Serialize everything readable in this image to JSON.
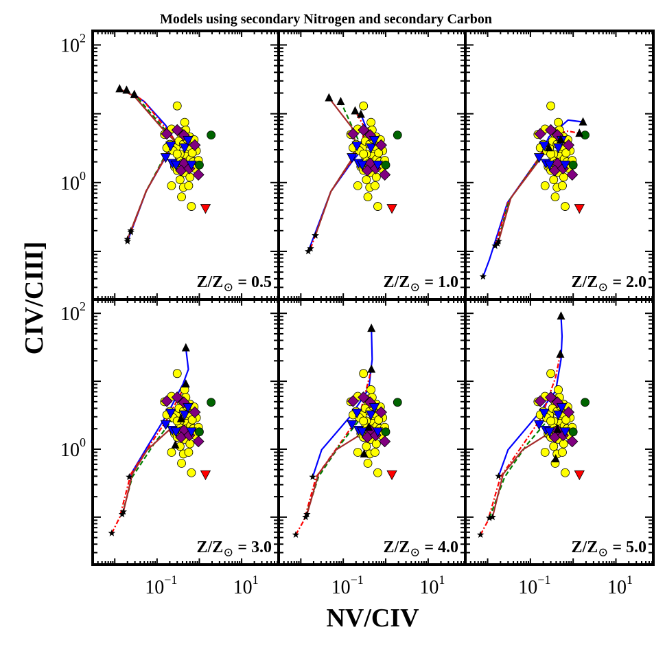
{
  "chart_data": {
    "type": "scatter",
    "title": "Models using secondary Nitrogen and secondary Carbon",
    "xlabel": "NV/CIV",
    "ylabel": "CIV/CIII]",
    "xscale": "log",
    "yscale": "log",
    "xlim": [
      0.003,
      75
    ],
    "ylim": [
      0.02,
      160
    ],
    "x_tick_labels": [
      {
        "value": 0.1,
        "base": "10",
        "exp": "−1"
      },
      {
        "value": 10,
        "base": "10",
        "exp": "1"
      }
    ],
    "y_tick_labels": [
      {
        "value": 100,
        "base": "10",
        "exp": "2"
      },
      {
        "value": 1,
        "base": "10",
        "exp": "0"
      }
    ],
    "grid": false,
    "layout": "2 rows x 3 columns, shared axes",
    "panel_label_prefix": "Z/Z",
    "panel_label_sun": "⊙",
    "observations": {
      "yellow_circles": {
        "color": "#ffff00",
        "marker": "circle",
        "points": [
          [
            0.3,
            13
          ],
          [
            0.45,
            7.5
          ],
          [
            0.4,
            5.5
          ],
          [
            0.48,
            5.8
          ],
          [
            0.6,
            4.6
          ],
          [
            0.7,
            3.6
          ],
          [
            0.75,
            4.2
          ],
          [
            0.85,
            2.9
          ],
          [
            0.55,
            3.0
          ],
          [
            0.5,
            2.4
          ],
          [
            0.35,
            2.6
          ],
          [
            0.28,
            3.2
          ],
          [
            0.2,
            3.6
          ],
          [
            0.17,
            3.2
          ],
          [
            0.24,
            2.9
          ],
          [
            0.33,
            2.1
          ],
          [
            0.4,
            1.9
          ],
          [
            0.52,
            2.0
          ],
          [
            0.62,
            2.2
          ],
          [
            0.72,
            2.0
          ],
          [
            0.8,
            1.6
          ],
          [
            0.26,
            1.7
          ],
          [
            0.3,
            1.5
          ],
          [
            0.45,
            1.4
          ],
          [
            0.6,
            1.2
          ],
          [
            0.35,
            1.1
          ],
          [
            0.22,
            0.9
          ],
          [
            0.42,
            0.85
          ],
          [
            0.56,
            0.9
          ],
          [
            0.38,
            0.62
          ],
          [
            0.65,
            0.45
          ],
          [
            0.15,
            5.0
          ],
          [
            0.22,
            6.0
          ],
          [
            0.33,
            4.0
          ],
          [
            0.42,
            3.6
          ],
          [
            0.58,
            3.3
          ],
          [
            0.68,
            2.7
          ],
          [
            0.95,
            2.1
          ],
          [
            0.3,
            2.6
          ],
          [
            0.36,
            5.2
          ],
          [
            0.5,
            4.3
          ]
        ]
      },
      "purple_diamonds": {
        "color": "#800080",
        "marker": "diamond",
        "points": [
          [
            0.3,
            5.8
          ],
          [
            0.43,
            4.9
          ],
          [
            0.78,
            3.5
          ],
          [
            0.43,
            1.9
          ],
          [
            0.37,
            1.5
          ],
          [
            0.58,
            1.6
          ],
          [
            0.95,
            1.3
          ],
          [
            0.17,
            5.1
          ]
        ]
      },
      "blue_down_triangles": {
        "color": "#0000ff",
        "marker": "triangle-down",
        "points": [
          [
            0.21,
            3.4
          ],
          [
            0.45,
            3.2
          ],
          [
            0.54,
            4.1
          ],
          [
            0.16,
            2.3
          ],
          [
            0.23,
            1.9
          ],
          [
            0.28,
            1.8
          ],
          [
            0.65,
            1.8
          ]
        ]
      },
      "green_circles": {
        "color": "#006400",
        "marker": "circle",
        "points": [
          [
            1.9,
            4.9
          ],
          [
            1.0,
            1.8
          ]
        ]
      },
      "red_down_triangles": {
        "color": "#ff0000",
        "marker": "triangle-down",
        "points": [
          [
            1.4,
            0.42
          ]
        ]
      }
    },
    "model_styles": [
      {
        "color": "#0000ff",
        "dash": "solid"
      },
      {
        "color": "#ff0000",
        "dash": "dashdot"
      },
      {
        "color": "#008000",
        "dash": "dashed"
      },
      {
        "color": "#a52a2a",
        "dash": "solid"
      }
    ],
    "panels": [
      {
        "z": "0.5",
        "tracks": [
          [
            [
              0.02,
              0.14
            ],
            [
              0.056,
              0.76
            ],
            [
              0.15,
              2.2
            ],
            [
              0.26,
              4.1
            ],
            [
              0.16,
              6.8
            ],
            [
              0.05,
              15
            ],
            [
              0.029,
              19
            ]
          ],
          [
            [
              0.024,
              0.19
            ],
            [
              0.055,
              0.75
            ],
            [
              0.15,
              2.2
            ],
            [
              0.26,
              4.2
            ],
            [
              0.15,
              6.5
            ],
            [
              0.05,
              15
            ],
            [
              0.029,
              19
            ]
          ],
          [
            [
              0.024,
              0.2
            ],
            [
              0.056,
              0.76
            ],
            [
              0.14,
              2.2
            ],
            [
              0.25,
              4.2
            ],
            [
              0.14,
              6.3
            ],
            [
              0.035,
              17
            ],
            [
              0.019,
              22
            ]
          ],
          [
            [
              0.02,
              0.15
            ],
            [
              0.055,
              0.74
            ],
            [
              0.14,
              2.1
            ],
            [
              0.25,
              4.1
            ],
            [
              0.13,
              6.2
            ],
            [
              0.029,
              18
            ],
            [
              0.013,
              23
            ]
          ]
        ]
      },
      {
        "z": "1.0",
        "tracks": [
          [
            [
              0.015,
              0.1
            ],
            [
              0.051,
              0.74
            ],
            [
              0.16,
              2.0
            ],
            [
              0.3,
              3.2
            ],
            [
              0.4,
              5.0
            ],
            [
              0.26,
              9.8
            ]
          ],
          [
            [
              0.017,
              0.11
            ],
            [
              0.051,
              0.74
            ],
            [
              0.16,
              2.1
            ],
            [
              0.28,
              4.0
            ],
            [
              0.32,
              6.3
            ],
            [
              0.19,
              11
            ]
          ],
          [
            [
              0.022,
              0.17
            ],
            [
              0.051,
              0.74
            ],
            [
              0.16,
              2.2
            ],
            [
              0.22,
              4.3
            ],
            [
              0.087,
              15
            ]
          ],
          [
            [
              0.022,
              0.17
            ],
            [
              0.051,
              0.74
            ],
            [
              0.16,
              2.2
            ],
            [
              0.2,
              3.5
            ],
            [
              0.16,
              6.3
            ],
            [
              0.046,
              17
            ]
          ]
        ]
      },
      {
        "z": "2.0",
        "tracks": [
          [
            [
              0.0078,
              0.043
            ],
            [
              0.011,
              0.076
            ],
            [
              0.029,
              0.51
            ],
            [
              0.16,
              2.3
            ],
            [
              0.27,
              4.6
            ],
            [
              0.76,
              8.1
            ],
            [
              1.7,
              7.6
            ]
          ],
          [
            [
              0.015,
              0.12
            ],
            [
              0.03,
              0.52
            ],
            [
              0.16,
              2.3
            ],
            [
              0.35,
              5.0
            ],
            [
              0.76,
              5.6
            ],
            [
              1.4,
              5.2
            ]
          ],
          [
            [
              0.017,
              0.13
            ],
            [
              0.032,
              0.55
            ],
            [
              0.16,
              2.2
            ],
            [
              0.4,
              4.2
            ],
            [
              0.51,
              4.2
            ]
          ],
          [
            [
              0.018,
              0.14
            ],
            [
              0.035,
              0.6
            ],
            [
              0.16,
              2.1
            ],
            [
              0.27,
              3.2
            ]
          ]
        ]
      },
      {
        "z": "3.0",
        "tracks": [
          [
            [
              0.022,
              0.39
            ],
            [
              0.058,
              1.07
            ],
            [
              0.19,
              3.6
            ],
            [
              0.41,
              9.1
            ],
            [
              0.55,
              15
            ],
            [
              0.48,
              31
            ]
          ],
          [
            [
              0.0085,
              0.058
            ],
            [
              0.013,
              0.098
            ],
            [
              0.024,
              0.43
            ],
            [
              0.071,
              1.2
            ],
            [
              0.17,
              2.7
            ],
            [
              0.48,
              9.1
            ]
          ],
          [
            [
              0.015,
              0.11
            ],
            [
              0.026,
              0.39
            ],
            [
              0.085,
              1.2
            ],
            [
              0.23,
              2.7
            ],
            [
              0.37,
              2.8
            ]
          ],
          [
            [
              0.016,
              0.12
            ],
            [
              0.026,
              0.43
            ],
            [
              0.058,
              0.97
            ],
            [
              0.19,
              1.9
            ],
            [
              0.29,
              1.4
            ],
            [
              0.27,
              1.15
            ]
          ]
        ]
      },
      {
        "z": "4.0",
        "tracks": [
          [
            [
              0.019,
              0.39
            ],
            [
              0.031,
              0.98
            ],
            [
              0.15,
              3.1
            ],
            [
              0.4,
              7.8
            ],
            [
              0.48,
              21
            ],
            [
              0.46,
              60
            ]
          ],
          [
            [
              0.0076,
              0.055
            ],
            [
              0.012,
              0.091
            ],
            [
              0.023,
              0.39
            ],
            [
              0.083,
              1.2
            ],
            [
              0.24,
              3.1
            ],
            [
              0.46,
              15
            ]
          ],
          [
            [
              0.013,
              0.1
            ],
            [
              0.026,
              0.39
            ],
            [
              0.083,
              1.15
            ],
            [
              0.24,
              2.7
            ],
            [
              0.4,
              2.1
            ]
          ],
          [
            [
              0.014,
              0.11
            ],
            [
              0.026,
              0.43
            ],
            [
              0.068,
              0.98
            ],
            [
              0.22,
              1.55
            ],
            [
              0.35,
              1.4
            ],
            [
              0.31,
              0.85
            ]
          ]
        ]
      },
      {
        "z": "5.0",
        "tracks": [
          [
            [
              0.018,
              0.4
            ],
            [
              0.03,
              0.98
            ],
            [
              0.14,
              3.1
            ],
            [
              0.39,
              7.2
            ],
            [
              0.52,
              21
            ],
            [
              0.55,
              46
            ],
            [
              0.52,
              91
            ]
          ],
          [
            [
              0.0068,
              0.055
            ],
            [
              0.01,
              0.087
            ],
            [
              0.02,
              0.39
            ],
            [
              0.066,
              1.15
            ],
            [
              0.18,
              2.9
            ],
            [
              0.39,
              11.5
            ],
            [
              0.5,
              25
            ]
          ],
          [
            [
              0.011,
              0.097
            ],
            [
              0.025,
              0.39
            ],
            [
              0.081,
              1.15
            ],
            [
              0.26,
              2.7
            ],
            [
              0.43,
              1.95
            ]
          ],
          [
            [
              0.013,
              0.1
            ],
            [
              0.023,
              0.43
            ],
            [
              0.066,
              0.98
            ],
            [
              0.21,
              1.55
            ],
            [
              0.39,
              1.4
            ],
            [
              0.39,
              0.72
            ]
          ]
        ]
      }
    ]
  }
}
